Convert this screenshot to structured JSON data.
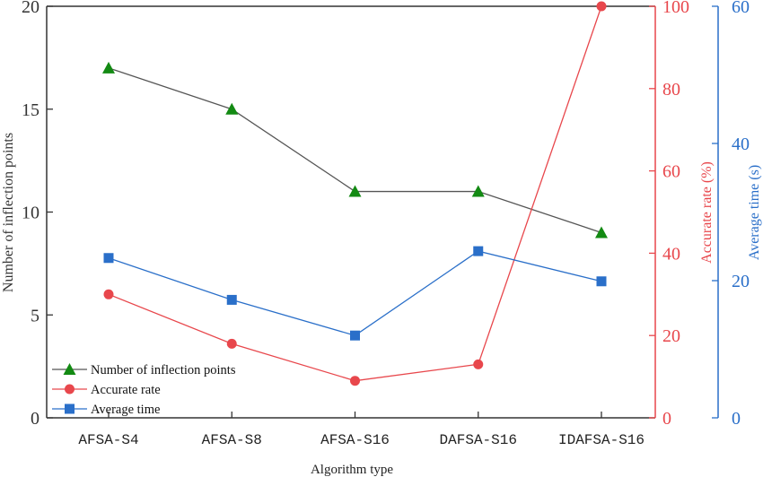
{
  "chart_data": {
    "type": "line",
    "xlabel": "Algorithm type",
    "categories": [
      "AFSA-S4",
      "AFSA-S8",
      "AFSA-S16",
      "DAFSA-S16",
      "IDAFSA-S16"
    ],
    "axes": {
      "left": {
        "label": "Number of inflection points",
        "min": 0,
        "max": 20,
        "ticks": [
          0,
          5,
          10,
          15,
          20
        ],
        "color": "#333333"
      },
      "right1": {
        "label": "Accurate rate (%)",
        "min": 0,
        "max": 100,
        "ticks": [
          0,
          20,
          40,
          60,
          80,
          100
        ],
        "color": "#e8474c"
      },
      "right2": {
        "label": "Average time (s)",
        "min": 0,
        "max": 60,
        "ticks": [
          0,
          20,
          40,
          60
        ],
        "color": "#2a6fc9"
      }
    },
    "series": [
      {
        "name": "Number of inflection points",
        "axis": "left",
        "marker": "triangle",
        "line_color": "#555555",
        "marker_color": "#138a13",
        "values": [
          17,
          15,
          11,
          11,
          9
        ]
      },
      {
        "name": "Accurate rate",
        "axis": "right1",
        "marker": "circle",
        "line_color": "#e8474c",
        "marker_color": "#e8474c",
        "values": [
          30,
          18,
          9,
          13,
          100
        ]
      },
      {
        "name": "Average time",
        "axis": "right2",
        "marker": "square",
        "line_color": "#2a6fc9",
        "marker_color": "#2a6fc9",
        "values": [
          23.3,
          17.2,
          12.0,
          24.3,
          19.9
        ]
      }
    ],
    "legend_position": "bottom-left",
    "grid": false
  }
}
